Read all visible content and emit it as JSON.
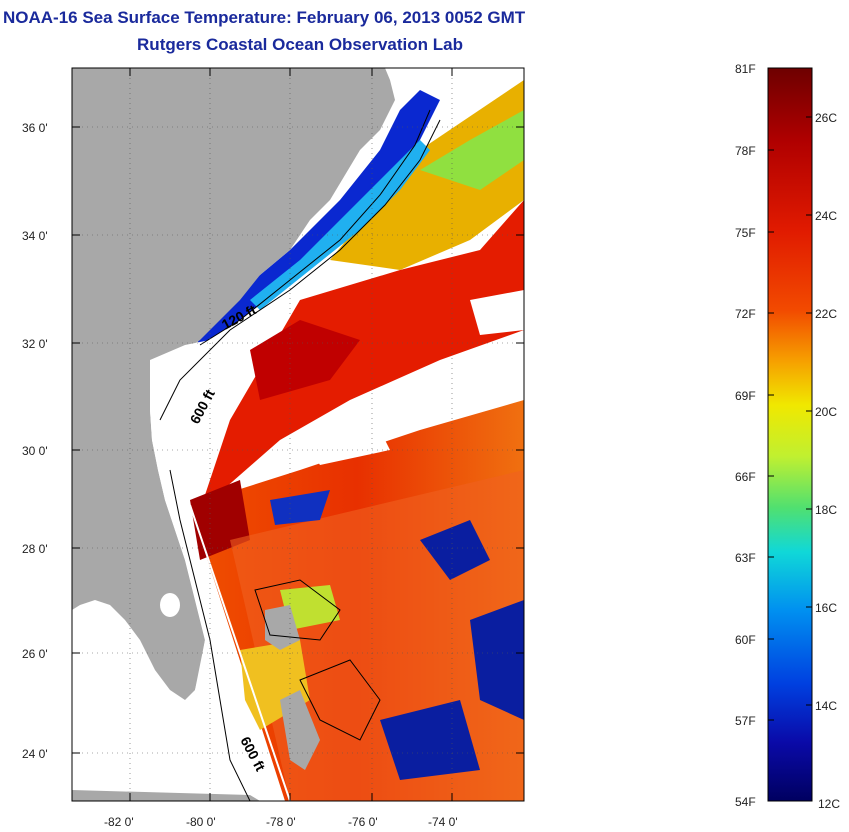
{
  "title": "NOAA-16 Sea Surface Temperature:  February 06, 2013 0052 GMT",
  "subtitle": "Rutgers Coastal Ocean Observation Lab",
  "map": {
    "lat_labels": [
      "36 0'",
      "34 0'",
      "32 0'",
      "30 0'",
      "28 0'",
      "26 0'",
      "24 0'"
    ],
    "lon_labels": [
      "-82 0'",
      "-80 0'",
      "-78 0'",
      "-76 0'",
      "-74 0'"
    ],
    "contour_labels": [
      "120 ft",
      "600 ft",
      "600 ft"
    ]
  },
  "colorbar": {
    "fahrenheit_labels": [
      "81F",
      "78F",
      "75F",
      "72F",
      "69F",
      "66F",
      "63F",
      "60F",
      "57F",
      "54F"
    ],
    "celsius_labels": [
      "26C",
      "24C",
      "22C",
      "20C",
      "18C",
      "16C",
      "14C",
      "12C"
    ],
    "colors": [
      "#6e0000",
      "#b00000",
      "#e01a00",
      "#f24a00",
      "#f6a000",
      "#f0e800",
      "#c0f030",
      "#50e070",
      "#10d8d8",
      "#0090f0",
      "#0040e0",
      "#0a0aa8",
      "#000060"
    ]
  },
  "colors": {
    "title": "#1a2a9c",
    "land": "#a8a8a8"
  }
}
